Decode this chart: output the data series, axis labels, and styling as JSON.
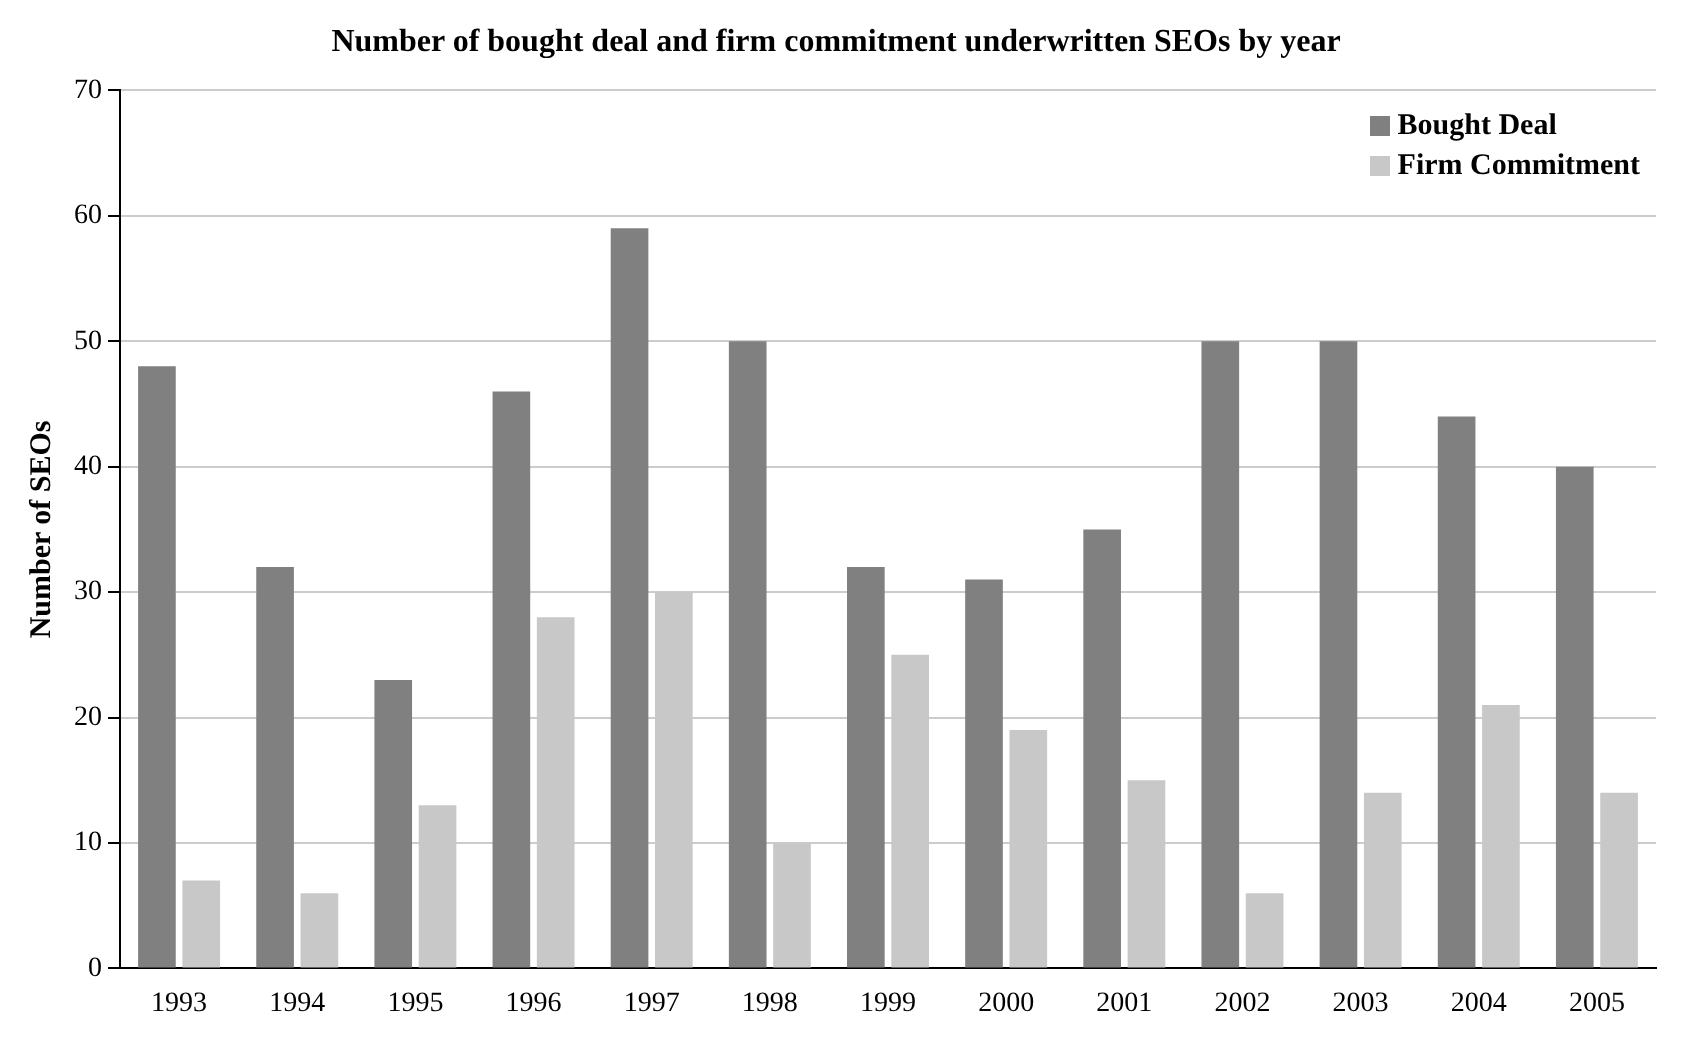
{
  "chart_data": {
    "type": "bar",
    "title": "Number of bought deal and firm commitment underwritten SEOs by year",
    "ylabel": "Number of SEOs",
    "categories": [
      "1993",
      "1994",
      "1995",
      "1996",
      "1997",
      "1998",
      "1999",
      "2000",
      "2001",
      "2002",
      "2003",
      "2004",
      "2005"
    ],
    "series": [
      {
        "name": "Bought Deal",
        "color": "#808080",
        "values": [
          48,
          32,
          23,
          46,
          59,
          50,
          32,
          31,
          35,
          50,
          50,
          44,
          40
        ]
      },
      {
        "name": "Firm Commitment",
        "color": "#c8c8c8",
        "values": [
          7,
          6,
          13,
          28,
          30,
          10,
          25,
          19,
          15,
          6,
          14,
          21,
          14
        ]
      }
    ],
    "ylim": [
      0,
      70
    ],
    "yticks": [
      0,
      10,
      20,
      30,
      40,
      50,
      60,
      70
    ],
    "grid": "y",
    "legend": "top right"
  }
}
